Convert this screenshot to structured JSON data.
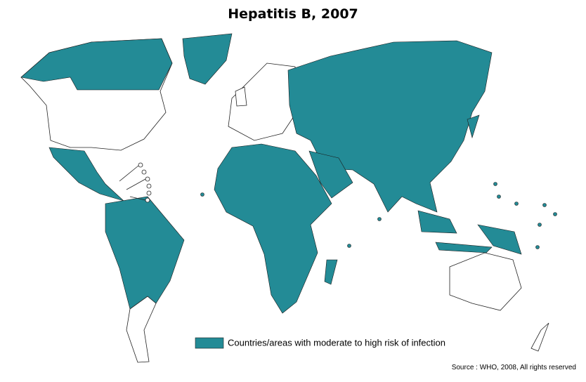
{
  "title": "Hepatitis B, 2007",
  "legend": {
    "label": "Countries/areas with moderate to high risk of infection",
    "color": "#238b96"
  },
  "source": "Source : WHO, 2008, All rights reserved"
}
